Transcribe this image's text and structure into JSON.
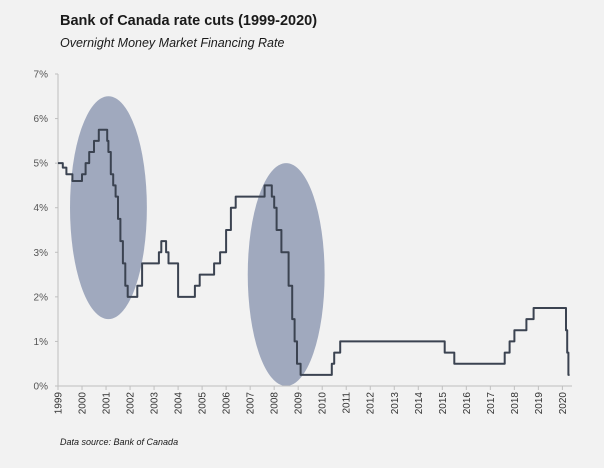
{
  "header": {
    "title": "Bank of Canada rate cuts (1999-2020)",
    "subtitle": "Overnight Money Market Financing Rate"
  },
  "footer": {
    "source": "Data source: Bank of Canada"
  },
  "colors": {
    "line": "#3b4351",
    "ellipse": "#7d8aa8",
    "background": "#f2f2f2",
    "axis": "#bfbfbf"
  },
  "chart_data": {
    "type": "line",
    "title": "Bank of Canada rate cuts (1999-2020)",
    "subtitle": "Overnight Money Market Financing Rate",
    "xlabel": "",
    "ylabel": "",
    "xlim": [
      1999,
      2020.4
    ],
    "ylim": [
      0,
      7
    ],
    "grid": false,
    "y_ticks": [
      "0%",
      "1%",
      "2%",
      "3%",
      "4%",
      "5%",
      "6%",
      "7%"
    ],
    "x_ticks": [
      "1999",
      "2000",
      "2001",
      "2002",
      "2003",
      "2004",
      "2005",
      "2006",
      "2007",
      "2008",
      "2009",
      "2010",
      "2011",
      "2012",
      "2013",
      "2014",
      "2015",
      "2016",
      "2017",
      "2018",
      "2019",
      "2020"
    ],
    "series": [
      {
        "x": [
          1999.0,
          1999.2,
          1999.35,
          1999.6,
          1999.8,
          2000.0,
          2000.15,
          2000.3,
          2000.5,
          2000.7,
          2000.9,
          2001.0,
          2001.05,
          2001.1,
          2001.2,
          2001.3,
          2001.4,
          2001.5,
          2001.6,
          2001.7,
          2001.8,
          2001.9,
          2002.0,
          2002.3,
          2002.5,
          2002.9,
          2003.0,
          2003.2,
          2003.3,
          2003.5,
          2003.6,
          2003.8,
          2004.0,
          2004.2,
          2004.7,
          2004.9,
          2005.0,
          2005.2,
          2005.5,
          2005.75,
          2006.0,
          2006.2,
          2006.4,
          2006.5,
          2007.0,
          2007.3,
          2007.6,
          2007.75,
          2007.9,
          2008.0,
          2008.1,
          2008.3,
          2008.4,
          2008.5,
          2008.6,
          2008.75,
          2008.85,
          2008.95,
          2009.1,
          2009.3,
          2009.5,
          2010.0,
          2010.4,
          2010.5,
          2010.75,
          2011.0,
          2012.0,
          2013.0,
          2014.0,
          2015.0,
          2015.1,
          2015.5,
          2015.6,
          2016.0,
          2017.0,
          2017.5,
          2017.6,
          2017.8,
          2018.0,
          2018.2,
          2018.5,
          2018.8,
          2019.0,
          2019.5,
          2020.0,
          2020.15,
          2020.2,
          2020.25,
          2020.3
        ],
        "y": [
          5.0,
          4.9,
          4.75,
          4.6,
          4.6,
          4.75,
          5.0,
          5.25,
          5.5,
          5.75,
          5.75,
          5.75,
          5.5,
          5.25,
          4.75,
          4.5,
          4.25,
          3.75,
          3.25,
          2.75,
          2.25,
          2.0,
          2.0,
          2.25,
          2.75,
          2.75,
          2.75,
          3.0,
          3.25,
          3.0,
          2.75,
          2.75,
          2.0,
          2.0,
          2.25,
          2.5,
          2.5,
          2.5,
          2.75,
          3.0,
          3.5,
          4.0,
          4.25,
          4.25,
          4.25,
          4.25,
          4.5,
          4.5,
          4.25,
          4.0,
          3.5,
          3.0,
          3.0,
          3.0,
          2.25,
          1.5,
          1.0,
          0.5,
          0.25,
          0.25,
          0.25,
          0.25,
          0.5,
          0.75,
          1.0,
          1.0,
          1.0,
          1.0,
          1.0,
          1.0,
          0.75,
          0.5,
          0.5,
          0.5,
          0.5,
          0.5,
          0.75,
          1.0,
          1.25,
          1.25,
          1.5,
          1.75,
          1.75,
          1.75,
          1.75,
          1.25,
          0.75,
          0.25,
          0.25
        ]
      }
    ],
    "highlights": [
      {
        "cx_year": 2001.1,
        "cy_value": 4.0,
        "rx_years": 1.6,
        "ry_value": 2.5
      },
      {
        "cx_year": 2008.5,
        "cy_value": 2.5,
        "rx_years": 1.6,
        "ry_value": 2.5
      }
    ]
  }
}
